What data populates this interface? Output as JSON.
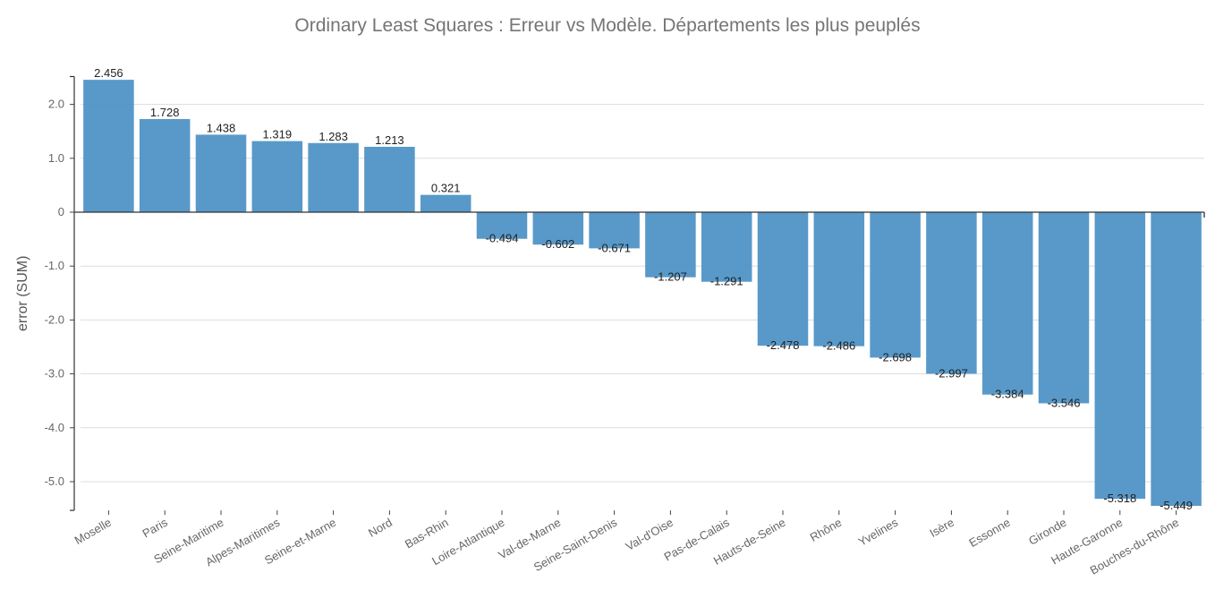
{
  "chart_data": {
    "type": "bar",
    "title": "Ordinary Least Squares  : Erreur vs Modèle. Départements les plus peuplés",
    "xlabel": "",
    "ylabel": "error (SUM)",
    "ylim": [
      -5.5,
      2.5
    ],
    "yticks": [
      2,
      1,
      0,
      -1,
      -2,
      -3,
      -4,
      -5
    ],
    "ytick_labels": [
      "2.0",
      "1.0",
      "0",
      "-1.0",
      "-2.0",
      "-3.0",
      "-4.0",
      "-5.0"
    ],
    "grid": true,
    "legend": "none",
    "color": "#4a90c4",
    "categories": [
      "Moselle",
      "Paris",
      "Seine-Maritime",
      "Alpes-Maritimes",
      "Seine-et-Marne",
      "Nord",
      "Bas-Rhin",
      "Loire-Atlantique",
      "Val-de-Marne",
      "Seine-Saint-Denis",
      "Val-d'Oise",
      "Pas-de-Calais",
      "Hauts-de-Seine",
      "Rhône",
      "Yvelines",
      "Isère",
      "Essonne",
      "Gironde",
      "Haute-Garonne",
      "Bouches-du-Rhône"
    ],
    "values": [
      2.456,
      1.728,
      1.438,
      1.319,
      1.283,
      1.213,
      0.321,
      -0.494,
      -0.602,
      -0.671,
      -1.207,
      -1.291,
      -2.478,
      -2.486,
      -2.698,
      -2.997,
      -3.384,
      -3.546,
      -5.318,
      -5.449
    ],
    "value_labels": [
      "2.456",
      "1.728",
      "1.438",
      "1.319",
      "1.283",
      "1.213",
      "0.321",
      "-0.494",
      "-0.602",
      "-0.671",
      "-1.207",
      "-1.291",
      "-2.478",
      "-2.486",
      "-2.698",
      "-2.997",
      "-3.384",
      "-3.546",
      "-5.318",
      "-5.449"
    ]
  }
}
